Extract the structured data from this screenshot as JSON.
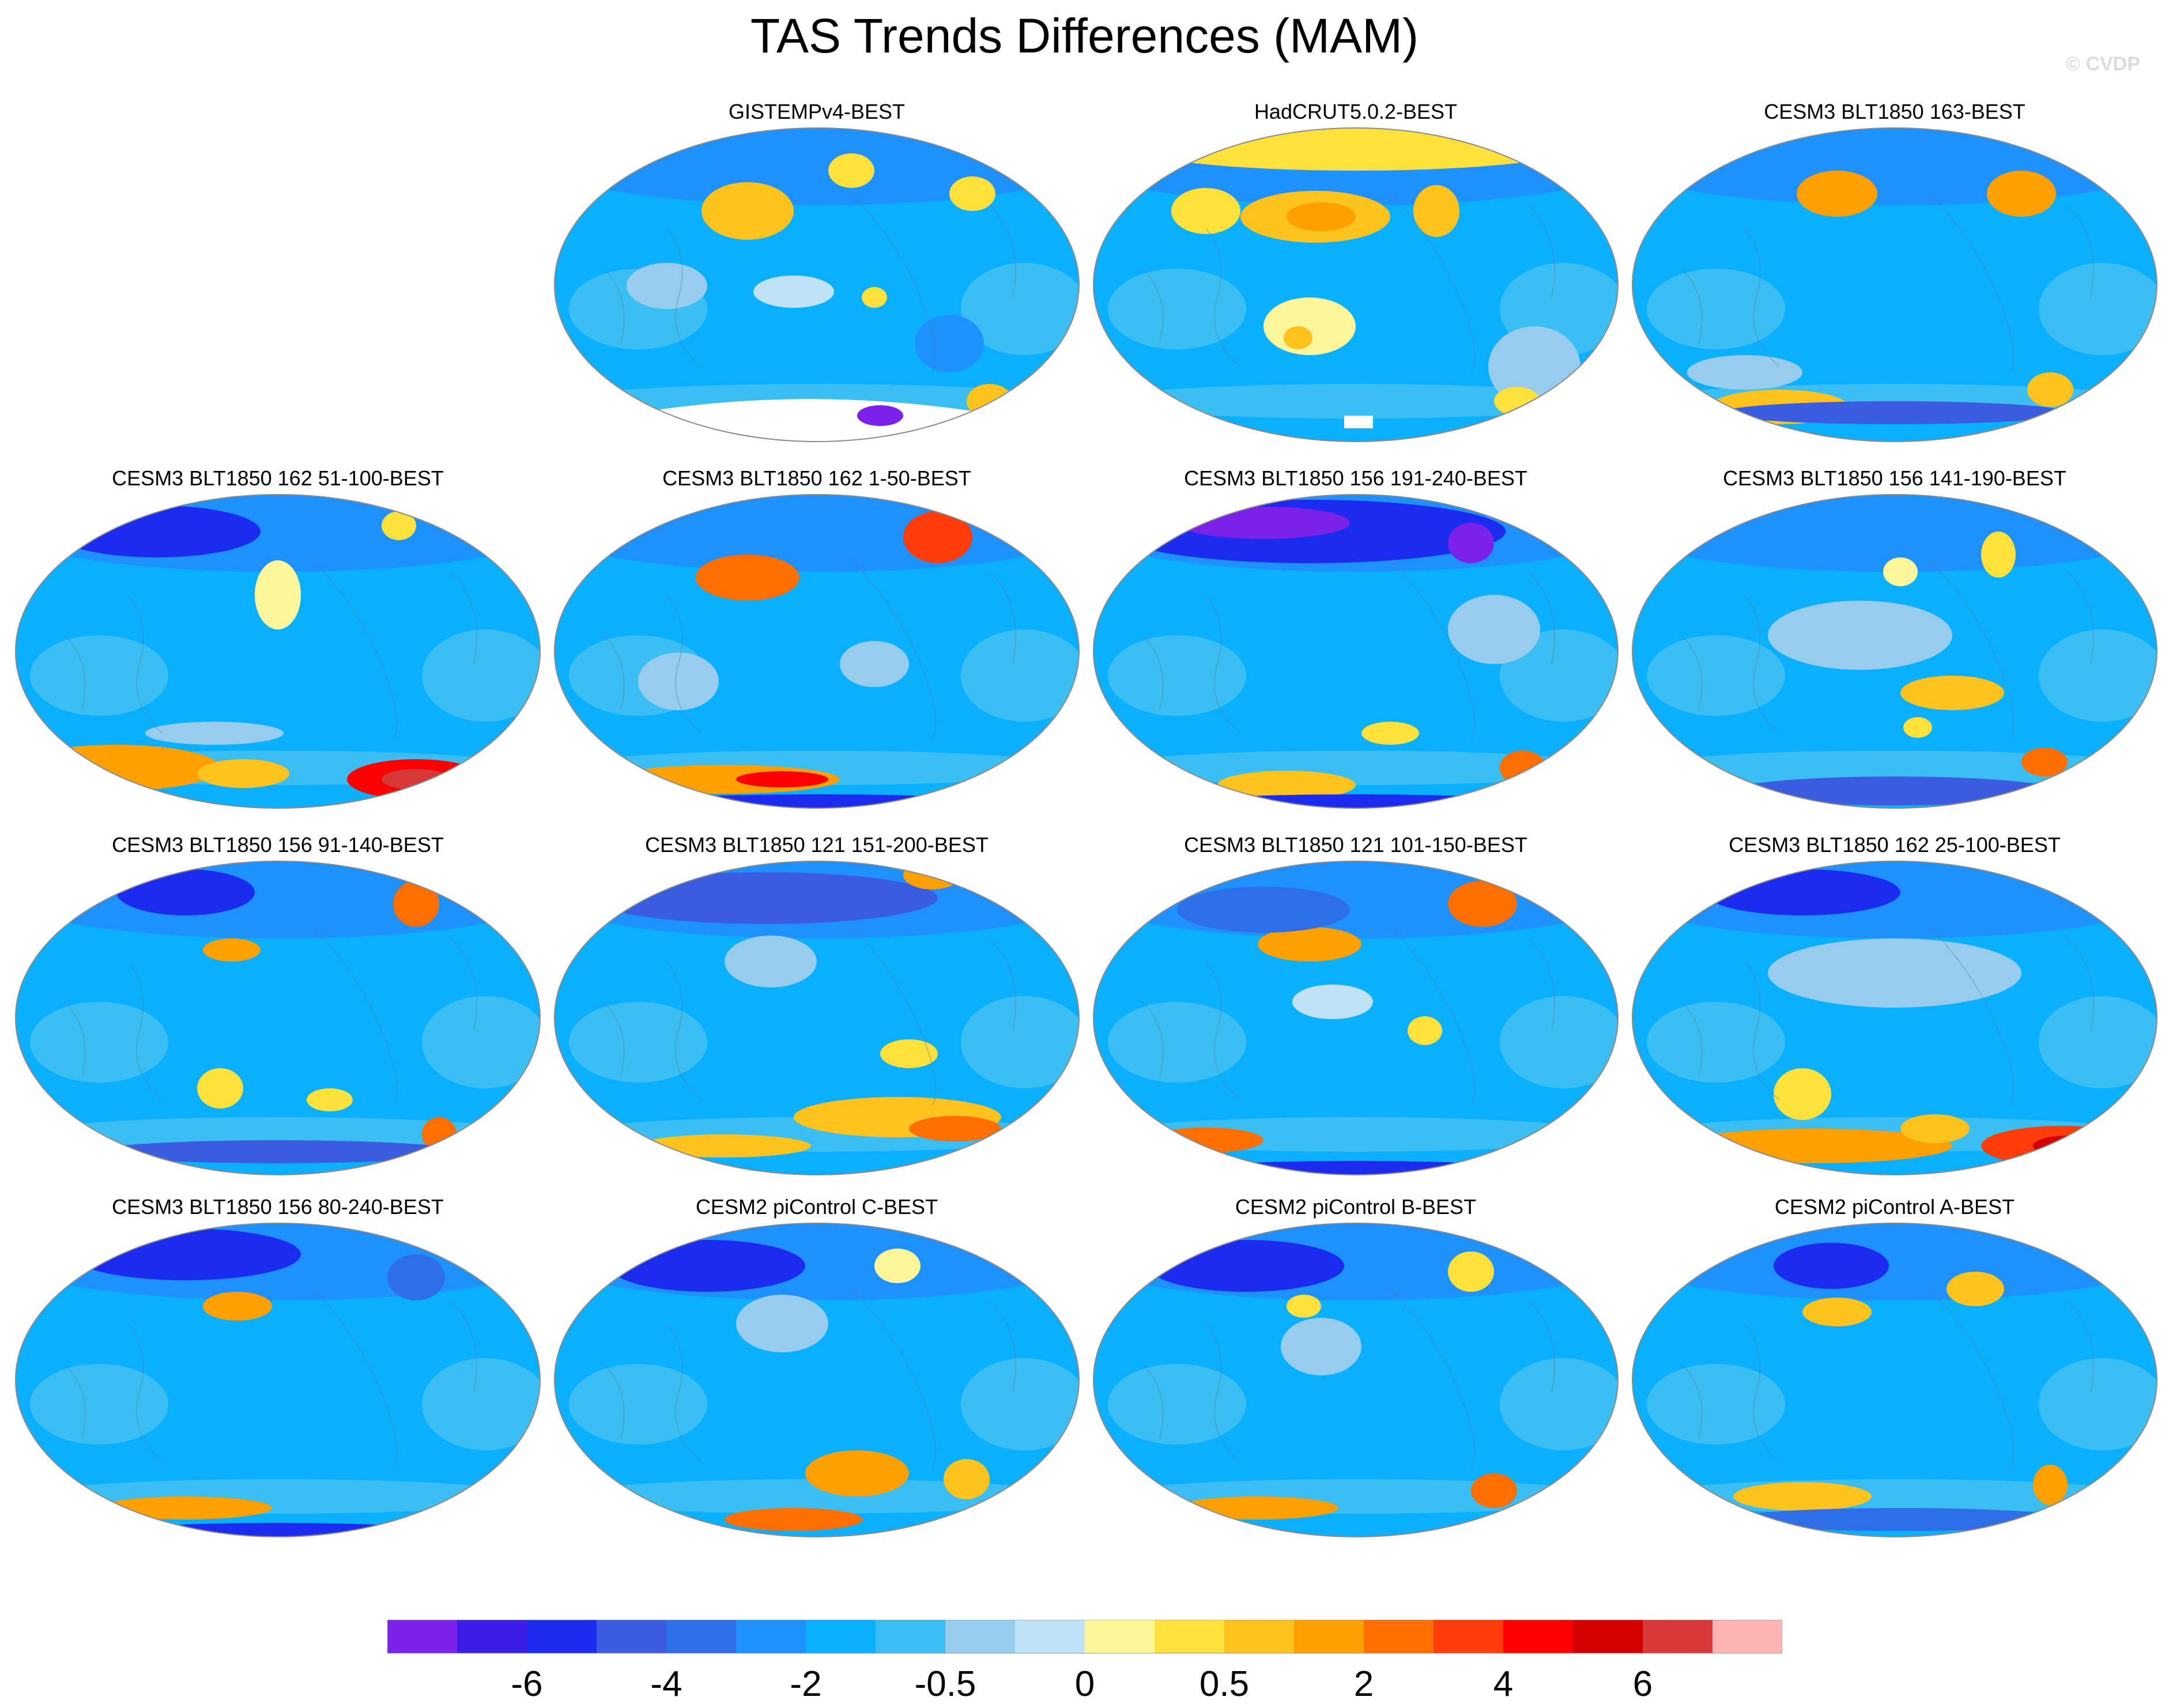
{
  "title": "TAS Trends Differences (MAM)",
  "watermark": "© CVDP",
  "chart_data": {
    "type": "heatmap",
    "projection": "Robinson (global maps)",
    "panels": [
      {
        "title": "GISTEMPv4-BEST",
        "warm_regions": [
          "central Asia",
          "northern Canada",
          "Greenland",
          "Antarctic Peninsula"
        ],
        "missing_data": "Antarctica",
        "min_level": "-6"
      },
      {
        "title": "HadCRUT5.0.2-BEST",
        "warm_regions": [
          "Arctic",
          "central Asia",
          "Greenland",
          "tropical Pacific"
        ],
        "missing_data": "Antarctic interior"
      },
      {
        "title": "CESM3 BLT1850 163-BEST",
        "warm_regions": [
          "Mongolia",
          "Hudson Bay",
          "Southern Ocean"
        ]
      },
      {
        "title": "CESM3 BLT1850 162 51-100-BEST",
        "warm_regions": [
          "Southern Ocean",
          "Ross Sea",
          "Bering Sea"
        ]
      },
      {
        "title": "CESM3 BLT1850 162 1-50-BEST",
        "warm_regions": [
          "Siberia",
          "northeast Canada",
          "Southern Ocean"
        ]
      },
      {
        "title": "CESM3 BLT1850 156 191-240-BEST",
        "warm_regions": [
          "Southern Ocean"
        ],
        "cold_regions": [
          "Eurasian Arctic"
        ]
      },
      {
        "title": "CESM3 BLT1850 156 141-190-BEST",
        "warm_regions": [
          "tropical Atlantic",
          "Greenland"
        ]
      },
      {
        "title": "CESM3 BLT1850 156 91-140-BEST",
        "warm_regions": [
          "Mongolia",
          "Greenland",
          "Antarctic Peninsula"
        ]
      },
      {
        "title": "CESM3 BLT1850 121 151-200-BEST",
        "warm_regions": [
          "South Atlantic",
          "Southern Ocean"
        ]
      },
      {
        "title": "CESM3 BLT1850 121 101-150-BEST",
        "warm_regions": [
          "Siberia",
          "Greenland"
        ]
      },
      {
        "title": "CESM3 BLT1850 162 25-100-BEST",
        "warm_regions": [
          "Southern Ocean",
          "Ross Sea",
          "Australia"
        ]
      },
      {
        "title": "CESM3 BLT1850 156 80-240-BEST",
        "warm_regions": [
          "Mongolia"
        ]
      },
      {
        "title": "CESM2 piControl C-BEST",
        "warm_regions": [
          "South Atlantic",
          "Weddell Sea"
        ]
      },
      {
        "title": "CESM2 piControl B-BEST",
        "warm_regions": [
          "Greenland",
          "Southern Ocean"
        ]
      },
      {
        "title": "CESM2 piControl A-BEST",
        "warm_regions": [
          "Mongolia",
          "Greenland"
        ]
      }
    ],
    "colorbar": {
      "label_values": [
        "-6",
        "-4",
        "-2",
        "-0.5",
        "0",
        "0.5",
        "2",
        "4",
        "6"
      ],
      "colors": [
        "#7c21e8",
        "#3a1ee8",
        "#1b2cf0",
        "#3a5ce0",
        "#2e6fe8",
        "#1e90ff",
        "#0ab0ff",
        "#3bbff2",
        "#96cdee",
        "#c0e2f6",
        "#fff59a",
        "#ffe03c",
        "#ffc21e",
        "#ff9f00",
        "#ff6e00",
        "#ff3c0a",
        "#ff0000",
        "#d20000",
        "#d83838",
        "#ffb4b4"
      ]
    }
  }
}
